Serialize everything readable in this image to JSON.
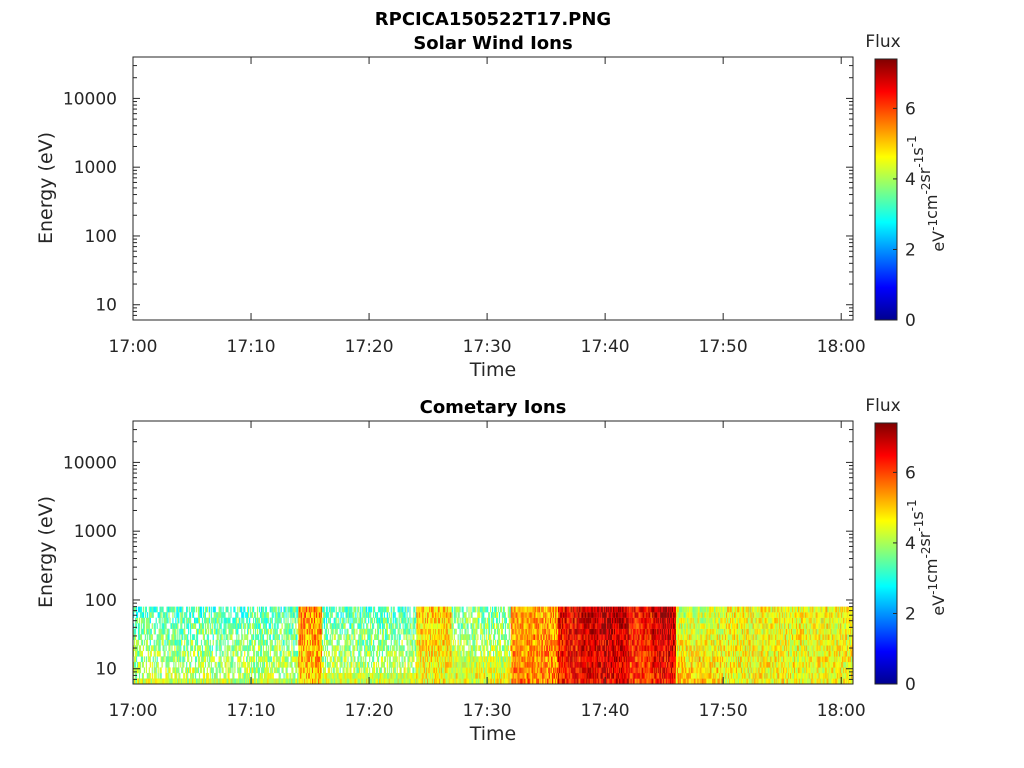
{
  "page": {
    "title": "RPCICA150522T17.PNG"
  },
  "colorbar": {
    "label": "Flux",
    "units_base": [
      "eV",
      "cm",
      "sr",
      "s"
    ],
    "units_exp": [
      "-1",
      "-2",
      "-1",
      "-1"
    ],
    "range": [
      0,
      7.4
    ],
    "ticks": [
      0,
      2,
      4,
      6
    ],
    "colormap": "jet",
    "colors": [
      "#00008f",
      "#0000ff",
      "#0080ff",
      "#00ffff",
      "#80ff80",
      "#ffff00",
      "#ff8000",
      "#ff0000",
      "#800000"
    ]
  },
  "chart_data": [
    {
      "type": "heatmap",
      "title": "Solar Wind Ions",
      "xlabel": "Time",
      "ylabel": "Energy (eV)",
      "x_range": [
        "17:00",
        "18:01"
      ],
      "x_ticks": [
        "17:00",
        "17:10",
        "17:20",
        "17:30",
        "17:40",
        "17:50",
        "18:00"
      ],
      "y_scale": "log",
      "y_range": [
        6,
        40000
      ],
      "y_ticks": [
        10,
        100,
        1000,
        10000
      ],
      "grid": false,
      "data": []
    },
    {
      "type": "heatmap",
      "title": "Cometary Ions",
      "xlabel": "Time",
      "ylabel": "Energy (eV)",
      "x_range": [
        "17:00",
        "18:01"
      ],
      "x_ticks": [
        "17:00",
        "17:10",
        "17:20",
        "17:30",
        "17:40",
        "17:50",
        "18:00"
      ],
      "y_scale": "log",
      "y_range": [
        6,
        40000
      ],
      "y_ticks": [
        10,
        100,
        1000,
        10000
      ],
      "grid": false,
      "data_energy_range": [
        6,
        80
      ],
      "flux_profile": [
        {
          "start": "17:00",
          "end": "17:14",
          "high_energy_flux": 3.3,
          "low_energy_flux": 4.2
        },
        {
          "start": "17:14",
          "end": "17:16",
          "high_energy_flux": 5.5,
          "low_energy_flux": 5.0
        },
        {
          "start": "17:16",
          "end": "17:24",
          "high_energy_flux": 3.3,
          "low_energy_flux": 4.3
        },
        {
          "start": "17:24",
          "end": "17:27",
          "high_energy_flux": 5.0,
          "low_energy_flux": 4.6
        },
        {
          "start": "17:27",
          "end": "17:32",
          "high_energy_flux": 3.6,
          "low_energy_flux": 4.5
        },
        {
          "start": "17:32",
          "end": "17:36",
          "high_energy_flux": 5.2,
          "low_energy_flux": 5.6
        },
        {
          "start": "17:36",
          "end": "17:38",
          "high_energy_flux": 6.6,
          "low_energy_flux": 6.3
        },
        {
          "start": "17:38",
          "end": "17:42",
          "high_energy_flux": 7.0,
          "low_energy_flux": 6.6
        },
        {
          "start": "17:42",
          "end": "17:44",
          "high_energy_flux": 6.4,
          "low_energy_flux": 6.0
        },
        {
          "start": "17:44",
          "end": "17:46",
          "high_energy_flux": 7.0,
          "low_energy_flux": 6.4
        },
        {
          "start": "17:46",
          "end": "17:50",
          "high_energy_flux": 4.2,
          "low_energy_flux": 5.0
        },
        {
          "start": "17:50",
          "end": "18:01",
          "high_energy_flux": 4.6,
          "low_energy_flux": 4.6
        }
      ]
    }
  ]
}
